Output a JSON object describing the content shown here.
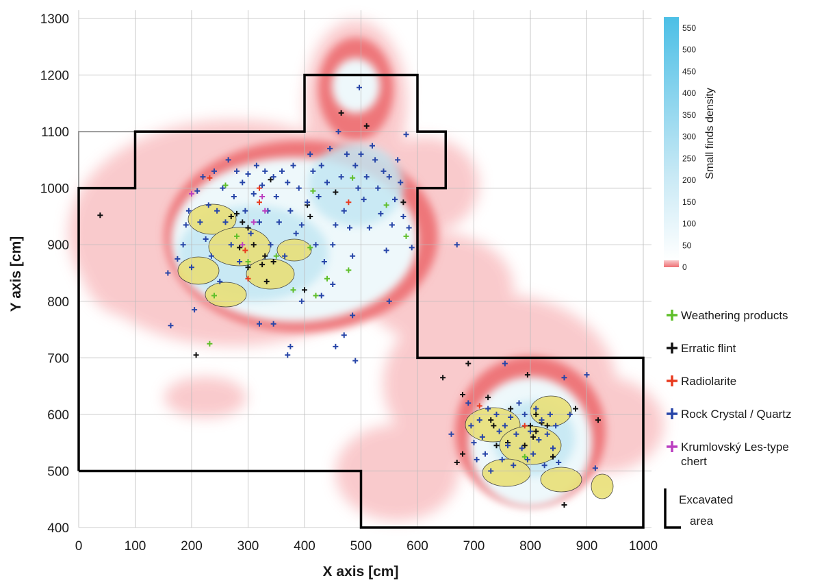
{
  "chart_data": {
    "type": "scatter",
    "xlabel": "X axis [cm]",
    "ylabel": "Y axis [cm]",
    "xlim": [
      0,
      1000
    ],
    "ylim": [
      400,
      1300
    ],
    "xticks": [
      0,
      100,
      200,
      300,
      400,
      500,
      600,
      700,
      800,
      900,
      1000
    ],
    "yticks": [
      400,
      500,
      600,
      700,
      800,
      900,
      1000,
      1100,
      1200,
      1300
    ],
    "grid": true,
    "colorbar": {
      "label": "Small finds density",
      "ticks": [
        0,
        50,
        100,
        150,
        200,
        250,
        300,
        350,
        400,
        450,
        500,
        550
      ],
      "range": [
        0,
        575
      ]
    },
    "legend_position": "right",
    "series": [
      {
        "name": "Weathering products",
        "color": "#5fbf2a",
        "points": [
          [
            232,
            725
          ],
          [
            260,
            1005
          ],
          [
            415,
            995
          ],
          [
            410,
            895
          ],
          [
            440,
            840
          ],
          [
            478,
            855
          ],
          [
            485,
            1018
          ],
          [
            545,
            970
          ],
          [
            580,
            915
          ],
          [
            300,
            870
          ],
          [
            380,
            820
          ],
          [
            420,
            810
          ],
          [
            790,
            525
          ],
          [
            280,
            915
          ],
          [
            350,
            880
          ],
          [
            240,
            810
          ]
        ]
      },
      {
        "name": "Erratic flint",
        "color": "#111111",
        "points": [
          [
            38,
            952
          ],
          [
            208,
            705
          ],
          [
            280,
            955
          ],
          [
            290,
            940
          ],
          [
            300,
            930
          ],
          [
            325,
            865
          ],
          [
            330,
            880
          ],
          [
            340,
            1015
          ],
          [
            405,
            970
          ],
          [
            410,
            950
          ],
          [
            400,
            820
          ],
          [
            465,
            1133
          ],
          [
            455,
            993
          ],
          [
            510,
            1110
          ],
          [
            575,
            975
          ],
          [
            333,
            835
          ],
          [
            345,
            870
          ],
          [
            270,
            950
          ],
          [
            285,
            895
          ],
          [
            300,
            860
          ],
          [
            310,
            900
          ],
          [
            645,
            665
          ],
          [
            680,
            635
          ],
          [
            690,
            690
          ],
          [
            725,
            630
          ],
          [
            730,
            590
          ],
          [
            740,
            545
          ],
          [
            760,
            550
          ],
          [
            795,
            670
          ],
          [
            800,
            580
          ],
          [
            810,
            570
          ],
          [
            820,
            585
          ],
          [
            830,
            580
          ],
          [
            805,
            560
          ],
          [
            840,
            525
          ],
          [
            860,
            440
          ],
          [
            880,
            610
          ],
          [
            920,
            590
          ],
          [
            670,
            515
          ],
          [
            680,
            530
          ],
          [
            735,
            580
          ],
          [
            790,
            545
          ],
          [
            810,
            600
          ],
          [
            765,
            610
          ]
        ]
      },
      {
        "name": "Radiolarite",
        "color": "#e83a1f",
        "points": [
          [
            232,
            1018
          ],
          [
            320,
            1000
          ],
          [
            295,
            890
          ],
          [
            478,
            975
          ],
          [
            710,
            615
          ],
          [
            790,
            580
          ],
          [
            320,
            975
          ],
          [
            300,
            840
          ]
        ]
      },
      {
        "name": "Rock Crystal / Quartz",
        "color": "#2745a8",
        "points": [
          [
            158,
            850
          ],
          [
            163,
            757
          ],
          [
            175,
            875
          ],
          [
            185,
            900
          ],
          [
            190,
            935
          ],
          [
            195,
            960
          ],
          [
            200,
            860
          ],
          [
            205,
            785
          ],
          [
            210,
            995
          ],
          [
            215,
            940
          ],
          [
            220,
            1020
          ],
          [
            225,
            910
          ],
          [
            230,
            970
          ],
          [
            235,
            880
          ],
          [
            240,
            1030
          ],
          [
            245,
            960
          ],
          [
            250,
            835
          ],
          [
            255,
            1000
          ],
          [
            260,
            940
          ],
          [
            265,
            1050
          ],
          [
            270,
            900
          ],
          [
            275,
            985
          ],
          [
            280,
            1030
          ],
          [
            285,
            870
          ],
          [
            290,
            1010
          ],
          [
            295,
            960
          ],
          [
            300,
            1025
          ],
          [
            305,
            920
          ],
          [
            310,
            990
          ],
          [
            315,
            1040
          ],
          [
            320,
            940
          ],
          [
            325,
            1005
          ],
          [
            330,
            1030
          ],
          [
            335,
            960
          ],
          [
            340,
            900
          ],
          [
            345,
            1020
          ],
          [
            350,
            985
          ],
          [
            355,
            940
          ],
          [
            360,
            1030
          ],
          [
            365,
            880
          ],
          [
            370,
            1010
          ],
          [
            375,
            960
          ],
          [
            380,
            1040
          ],
          [
            385,
            920
          ],
          [
            390,
            1000
          ],
          [
            395,
            935
          ],
          [
            370,
            705
          ],
          [
            375,
            720
          ],
          [
            345,
            760
          ],
          [
            320,
            760
          ],
          [
            405,
            975
          ],
          [
            410,
            1060
          ],
          [
            415,
            1030
          ],
          [
            420,
            900
          ],
          [
            425,
            985
          ],
          [
            430,
            1040
          ],
          [
            435,
            870
          ],
          [
            440,
            1010
          ],
          [
            445,
            1070
          ],
          [
            450,
            900
          ],
          [
            455,
            935
          ],
          [
            460,
            1100
          ],
          [
            465,
            1020
          ],
          [
            470,
            960
          ],
          [
            475,
            1060
          ],
          [
            480,
            930
          ],
          [
            485,
            880
          ],
          [
            490,
            1040
          ],
          [
            495,
            1000
          ],
          [
            500,
            1060
          ],
          [
            505,
            980
          ],
          [
            510,
            1020
          ],
          [
            515,
            930
          ],
          [
            520,
            1075
          ],
          [
            525,
            1050
          ],
          [
            530,
            1000
          ],
          [
            535,
            955
          ],
          [
            540,
            1030
          ],
          [
            545,
            890
          ],
          [
            550,
            1020
          ],
          [
            555,
            935
          ],
          [
            560,
            980
          ],
          [
            565,
            1050
          ],
          [
            570,
            1010
          ],
          [
            575,
            950
          ],
          [
            580,
            1095
          ],
          [
            585,
            930
          ],
          [
            590,
            895
          ],
          [
            485,
            775
          ],
          [
            490,
            695
          ],
          [
            455,
            720
          ],
          [
            470,
            740
          ],
          [
            550,
            800
          ],
          [
            497,
            1178
          ],
          [
            450,
            830
          ],
          [
            430,
            810
          ],
          [
            395,
            800
          ],
          [
            670,
            900
          ],
          [
            755,
            690
          ],
          [
            660,
            565
          ],
          [
            690,
            620
          ],
          [
            695,
            580
          ],
          [
            700,
            550
          ],
          [
            705,
            520
          ],
          [
            710,
            590
          ],
          [
            715,
            560
          ],
          [
            720,
            530
          ],
          [
            725,
            610
          ],
          [
            730,
            500
          ],
          [
            740,
            600
          ],
          [
            745,
            570
          ],
          [
            750,
            520
          ],
          [
            755,
            580
          ],
          [
            760,
            545
          ],
          [
            765,
            595
          ],
          [
            770,
            510
          ],
          [
            775,
            565
          ],
          [
            780,
            620
          ],
          [
            785,
            540
          ],
          [
            790,
            600
          ],
          [
            795,
            520
          ],
          [
            800,
            570
          ],
          [
            805,
            530
          ],
          [
            810,
            610
          ],
          [
            815,
            555
          ],
          [
            820,
            590
          ],
          [
            825,
            510
          ],
          [
            830,
            565
          ],
          [
            835,
            600
          ],
          [
            840,
            540
          ],
          [
            845,
            580
          ],
          [
            850,
            515
          ],
          [
            860,
            665
          ],
          [
            900,
            670
          ],
          [
            915,
            505
          ],
          [
            870,
            600
          ]
        ]
      },
      {
        "name": "Krumlovský Les-type chert",
        "color": "#bb3fc0",
        "points": [
          [
            200,
            990
          ],
          [
            325,
            985
          ],
          [
            310,
            940
          ],
          [
            330,
            960
          ],
          [
            290,
            900
          ]
        ]
      }
    ],
    "legend": [
      "Weathering products",
      "Erratic flint",
      "Radiolarite",
      "Rock Crystal / Quartz",
      "Krumlovský Les-type chert",
      "Excavated area"
    ]
  }
}
